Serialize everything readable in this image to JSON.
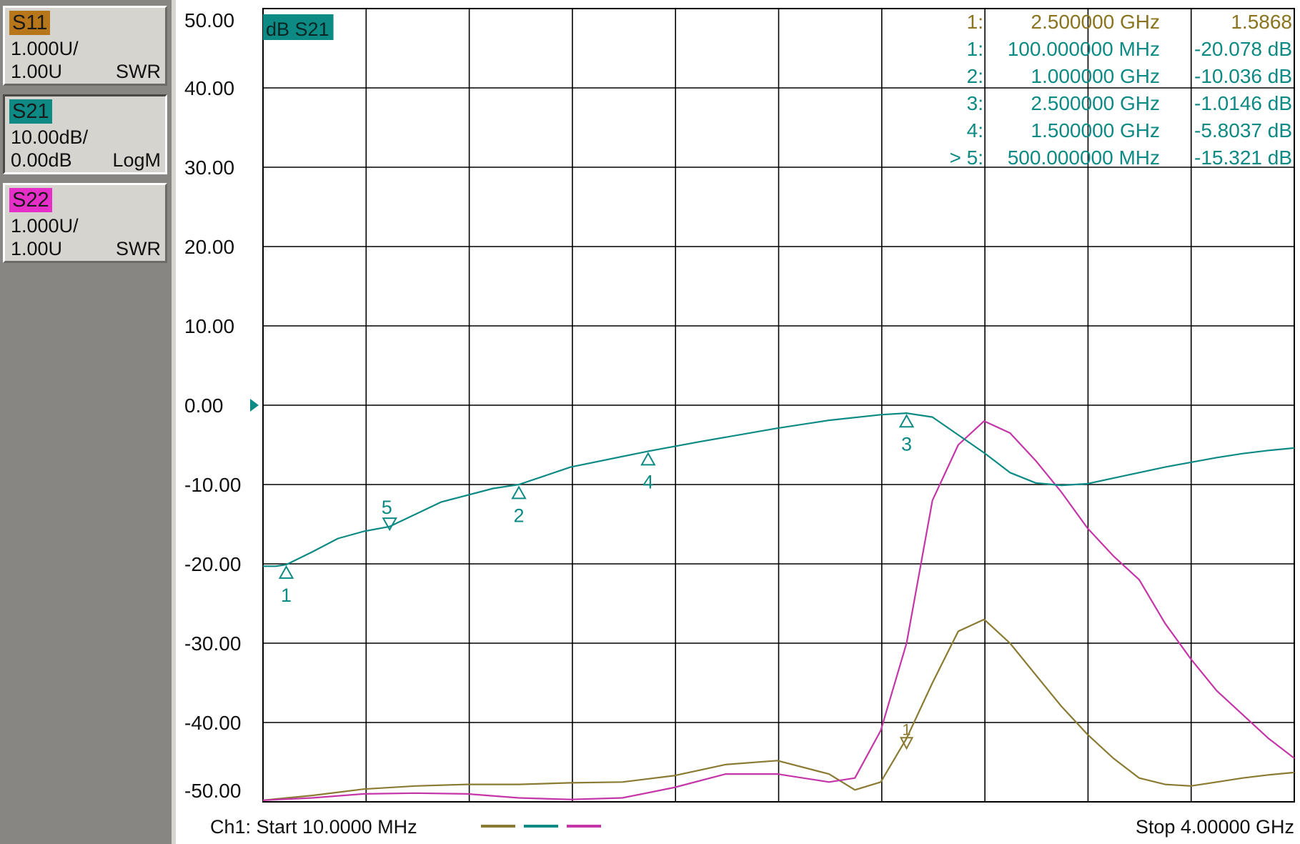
{
  "traces_panel": [
    {
      "name": "S11",
      "scale": "1.000U/",
      "ref": "1.00U",
      "format": "SWR",
      "color": "#b8761a"
    },
    {
      "name": "S21",
      "scale": "10.00dB/",
      "ref": "0.00dB",
      "format": "LogM",
      "color": "#0e8a85"
    },
    {
      "name": "S22",
      "scale": "1.000U/",
      "ref": "1.00U",
      "format": "SWR",
      "color": "#e62fc8"
    }
  ],
  "colors": {
    "S11": "#8a7a32",
    "S21": "#0e8a85",
    "S22": "#c436a8",
    "grid": "#000000",
    "marker_s11_text": "#8a7420"
  },
  "chart_data": {
    "type": "line",
    "active_trace_label": "dB S21",
    "xlim_mhz": [
      10,
      4000
    ],
    "ylim": [
      -50,
      50
    ],
    "y_ticks": [
      "50.00",
      "40.00",
      "30.00",
      "20.00",
      "10.00",
      "0.00",
      "-10.00",
      "-20.00",
      "-30.00",
      "-40.00",
      "-50.00"
    ],
    "reference_level_db": 0,
    "grid": true,
    "footer_start": "Ch1: Start  10.0000 MHz",
    "footer_stop": "Stop  4.00000 GHz",
    "series": [
      {
        "name": "S21",
        "x_mhz": [
          10,
          60,
          100,
          200,
          300,
          400,
          500,
          700,
          900,
          1000,
          1200,
          1500,
          1700,
          2000,
          2200,
          2400,
          2500,
          2600,
          2800,
          2900,
          3000,
          3100,
          3200,
          3300,
          3400,
          3500,
          3600,
          3700,
          3800,
          3900,
          4000
        ],
        "y": [
          -20.3,
          -20.3,
          -20.1,
          -18.5,
          -16.8,
          -15.9,
          -15.3,
          -12.2,
          -10.5,
          -10.0,
          -7.8,
          -5.8,
          -4.6,
          -2.9,
          -1.9,
          -1.2,
          -1.0,
          -1.5,
          -6.0,
          -8.5,
          -9.8,
          -10.1,
          -9.9,
          -9.2,
          -8.5,
          -7.8,
          -7.2,
          -6.6,
          -6.1,
          -5.7,
          -5.4
        ]
      },
      {
        "name": "S22",
        "x_mhz": [
          10,
          200,
          400,
          600,
          800,
          1000,
          1200,
          1400,
          1600,
          1800,
          2000,
          2200,
          2300,
          2400,
          2500,
          2600,
          2700,
          2800,
          2900,
          3000,
          3100,
          3200,
          3300,
          3400,
          3500,
          3600,
          3700,
          3800,
          3900,
          4000
        ],
        "y": [
          -49.8,
          -49.5,
          -49.0,
          -48.9,
          -49.0,
          -49.5,
          -49.7,
          -49.5,
          -48.2,
          -46.5,
          -46.5,
          -47.5,
          -47.0,
          -41.0,
          -30.0,
          -12.0,
          -5.0,
          -2.0,
          -3.5,
          -7.0,
          -11.0,
          -15.5,
          -19.0,
          -22.0,
          -27.5,
          -32.0,
          -36.0,
          -39.0,
          -42.0,
          -44.5
        ]
      },
      {
        "name": "S11",
        "x_mhz": [
          10,
          200,
          400,
          600,
          800,
          1000,
          1200,
          1400,
          1600,
          1800,
          2000,
          2200,
          2300,
          2400,
          2500,
          2600,
          2700,
          2800,
          2900,
          3000,
          3100,
          3200,
          3300,
          3400,
          3500,
          3600,
          3700,
          3800,
          3900,
          4000
        ],
        "y": [
          -49.8,
          -49.2,
          -48.4,
          -48.0,
          -47.8,
          -47.8,
          -47.6,
          -47.5,
          -46.7,
          -45.3,
          -44.8,
          -46.5,
          -48.5,
          -47.5,
          -42.0,
          -35.0,
          -28.5,
          -27.0,
          -30.0,
          -34.0,
          -38.0,
          -41.5,
          -44.5,
          -47.0,
          -47.8,
          -48.0,
          -47.5,
          -47.0,
          -46.6,
          -46.3
        ]
      }
    ],
    "markers": [
      {
        "id": "1",
        "x_mhz": 100,
        "y": -20.078,
        "readout": "1:",
        "freq": "100.000000 MHz",
        "value": "-20.078 dB",
        "label_below": true
      },
      {
        "id": "2",
        "x_mhz": 1000,
        "y": -10.036,
        "readout": "2:",
        "freq": "1.000000 GHz",
        "value": "-10.036 dB",
        "label_below": true
      },
      {
        "id": "3",
        "x_mhz": 2500,
        "y": -1.0146,
        "readout": "3:",
        "freq": "2.500000 GHz",
        "value": "-1.0146 dB",
        "label_below": true
      },
      {
        "id": "4",
        "x_mhz": 1500,
        "y": -5.8037,
        "readout": "4:",
        "freq": "1.500000 GHz",
        "value": "-5.8037 dB",
        "label_below": true
      },
      {
        "id": "5",
        "x_mhz": 500,
        "y": -15.321,
        "readout": "> 5:",
        "freq": "500.000000 MHz",
        "value": "-15.321 dB",
        "label_below": false
      }
    ],
    "s11_marker": {
      "id": "1",
      "x_mhz": 2500,
      "y": -43.0,
      "readout": "1:",
      "freq": "2.500000 GHz",
      "value": "1.5868"
    }
  }
}
